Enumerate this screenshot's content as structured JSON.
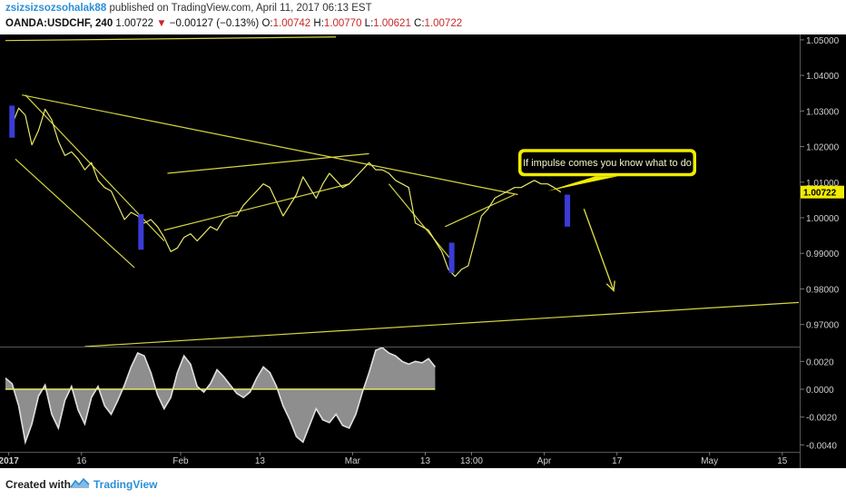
{
  "header": {
    "author": "zsizsizsozsohalak88",
    "published": "published on TradingView.com, April 11, 2017 06:13 EST",
    "symbol": "OANDA:USDCHF, 240",
    "price": "1.00722",
    "change": "−0.00127 (−0.13%)",
    "o_label": "O:",
    "o_value": "1.00742",
    "h_label": "H:",
    "h_value": "1.00770",
    "l_label": "L:",
    "l_value": "1.00621",
    "c_label": "C:",
    "c_value": "1.00722"
  },
  "footer": {
    "created": "Created with",
    "brand": "TradingView"
  },
  "colors": {
    "background": "#000000",
    "price": "#e8e86a",
    "trendline": "#d6d640",
    "annotation_fill": "#f0ec00",
    "histogram": "#bdbdbd",
    "impulse_candle": "#3b3bd6"
  },
  "chart_data": [
    {
      "type": "line",
      "title": "OANDA:USDCHF, 240",
      "ylim": [
        0.9638,
        1.0515
      ],
      "y_ticks": [
        1.05,
        1.04,
        1.03,
        1.02,
        1.01,
        1.0,
        0.99,
        0.98,
        0.97
      ],
      "y_tick_labels": [
        "1.05000",
        "1.04000",
        "1.03000",
        "1.02000",
        "1.01000",
        "1.00000",
        "0.99000",
        "0.98000",
        "0.97000"
      ],
      "x_ticks": [
        "2017",
        "16",
        "Feb",
        "13",
        "Mar",
        "13",
        "13:00",
        "Apr",
        "17",
        "May",
        "15"
      ],
      "x_tick_pos": [
        0.5,
        11.5,
        26.5,
        38.5,
        52.5,
        63.5,
        70.5,
        81.5,
        92.5,
        106.5,
        117.5
      ],
      "x_domain": [
        0,
        120
      ],
      "last_price_label": "1.00722",
      "series": [
        {
          "values": [
            1.0262,
            1.0308,
            1.0288,
            1.0205,
            1.0245,
            1.0305,
            1.0275,
            1.0215,
            1.0175,
            1.0185,
            1.0165,
            1.0135,
            1.0155,
            1.0105,
            1.0085,
            1.0075,
            1.0035,
            0.9995,
            1.0015,
            1.0005,
            0.9985,
            0.9995,
            0.9975,
            0.9945,
            0.9905,
            0.9915,
            0.9945,
            0.9955,
            0.9935,
            0.9955,
            0.9975,
            0.9965,
            0.9995,
            1.0005,
            1.0005,
            1.0035,
            1.0055,
            1.0075,
            1.0095,
            1.0085,
            1.0045,
            1.0005,
            1.0035,
            1.0065,
            1.0115,
            1.0085,
            1.0055,
            1.0095,
            1.0125,
            1.0105,
            1.0085,
            1.0095,
            1.0115,
            1.0135,
            1.0155,
            1.0135,
            1.0135,
            1.0125,
            1.0105,
            1.0095,
            1.0085,
            0.9985,
            0.9975,
            0.9965,
            0.9935,
            0.9905,
            0.9855,
            0.9835,
            0.9855,
            0.9865,
            0.9935,
            1.0005,
            1.0025,
            1.0055,
            1.0065,
            1.0075,
            1.0085,
            1.0085,
            1.0095,
            1.0105,
            1.0095,
            1.0095,
            1.0085,
            1.0072
          ]
        }
      ],
      "series_x": [
        1,
        2,
        3,
        4,
        5,
        6,
        7,
        8,
        9,
        10,
        11,
        12,
        13,
        14,
        15,
        16,
        17,
        18,
        19,
        20,
        21,
        22,
        23,
        24,
        25,
        26,
        27,
        28,
        29,
        30,
        31,
        32,
        33,
        34,
        35,
        36,
        37,
        38,
        39,
        40,
        41,
        42,
        43,
        44,
        45,
        46,
        47,
        48,
        49,
        50,
        51,
        52,
        53,
        54,
        55,
        56,
        57,
        58,
        59,
        60,
        61,
        62,
        63,
        64,
        65,
        66,
        67,
        68,
        69,
        70,
        71,
        72,
        73,
        74,
        75,
        76,
        77,
        78,
        79,
        80,
        81,
        82,
        83,
        84
      ],
      "trendlines": [
        {
          "x1": 0,
          "y1": 1.0498,
          "x2": 50,
          "y2": 1.0508
        },
        {
          "x1": 2.5,
          "y1": 1.0345,
          "x2": 77.5,
          "y2": 1.0065
        },
        {
          "x1": 3,
          "y1": 1.0345,
          "x2": 24,
          "y2": 0.9935
        },
        {
          "x1": 1.5,
          "y1": 1.0165,
          "x2": 19.5,
          "y2": 0.986
        },
        {
          "x1": 24.5,
          "y1": 1.0125,
          "x2": 55,
          "y2": 1.018
        },
        {
          "x1": 24,
          "y1": 0.9965,
          "x2": 52,
          "y2": 1.0095
        },
        {
          "x1": 58,
          "y1": 1.0095,
          "x2": 67.5,
          "y2": 0.988
        },
        {
          "x1": 66.5,
          "y1": 0.9975,
          "x2": 77,
          "y2": 1.0065
        },
        {
          "x1": 12,
          "y1": 0.9638,
          "x2": 120,
          "y2": 0.9762
        }
      ],
      "impulse_candles": [
        {
          "x": 1,
          "top": 1.0315,
          "bottom": 1.0225
        },
        {
          "x": 20.5,
          "top": 1.001,
          "bottom": 0.991
        },
        {
          "x": 67.5,
          "top": 0.993,
          "bottom": 0.9845
        },
        {
          "x": 85,
          "top": 1.0065,
          "bottom": 0.9975
        }
      ],
      "arrow": {
        "x1": 87.5,
        "y1": 1.0025,
        "x2": 92,
        "y2": 0.9795
      },
      "annotation": {
        "text": "If impulse comes you know what to do",
        "x": 86.5,
        "y": 1.0155,
        "pointer_x": 82,
        "pointer_y": 1.0075
      }
    },
    {
      "type": "area",
      "ylim": [
        -0.0045,
        0.003
      ],
      "y_ticks": [
        0.002,
        0.0,
        -0.002,
        -0.004
      ],
      "y_tick_labels": [
        "0.0020",
        "0.0000",
        "-0.0020",
        "-0.0040"
      ],
      "zero_line": 0.0,
      "series": [
        {
          "values": [
            0.0008,
            0.0004,
            -0.0012,
            -0.0038,
            -0.0025,
            -0.0005,
            0.0003,
            -0.0018,
            -0.0028,
            -0.0008,
            0.0002,
            -0.0015,
            -0.0025,
            -0.0006,
            0.0002,
            -0.0012,
            -0.0018,
            -0.0008,
            0.0003,
            0.0016,
            0.0026,
            0.0024,
            0.0012,
            -0.0004,
            -0.0014,
            -0.0006,
            0.0012,
            0.0024,
            0.0018,
            0.0002,
            -0.0002,
            0.0004,
            0.0014,
            0.0009,
            0.0003,
            -0.0003,
            -0.0006,
            -0.0002,
            0.0008,
            0.0016,
            0.0012,
            0.0002,
            -0.0012,
            -0.0022,
            -0.0034,
            -0.0038,
            -0.0026,
            -0.0014,
            -0.0022,
            -0.0024,
            -0.0018,
            -0.0026,
            -0.0028,
            -0.0018,
            -0.0002,
            0.0012,
            0.0028,
            0.003,
            0.0026,
            0.0024,
            0.002,
            0.0018,
            0.002,
            0.0019,
            0.0022,
            0.0016
          ]
        }
      ],
      "series_x": [
        0,
        1,
        2,
        3,
        4,
        5,
        6,
        7,
        8,
        9,
        10,
        11,
        12,
        13,
        14,
        15,
        16,
        17,
        18,
        19,
        20,
        21,
        22,
        23,
        24,
        25,
        26,
        27,
        28,
        29,
        30,
        31,
        32,
        33,
        34,
        35,
        36,
        37,
        38,
        39,
        40,
        41,
        42,
        43,
        44,
        45,
        46,
        47,
        48,
        49,
        50,
        51,
        52,
        53,
        54,
        55,
        56,
        57,
        58,
        59,
        60,
        61,
        62,
        63,
        64,
        65
      ]
    }
  ]
}
